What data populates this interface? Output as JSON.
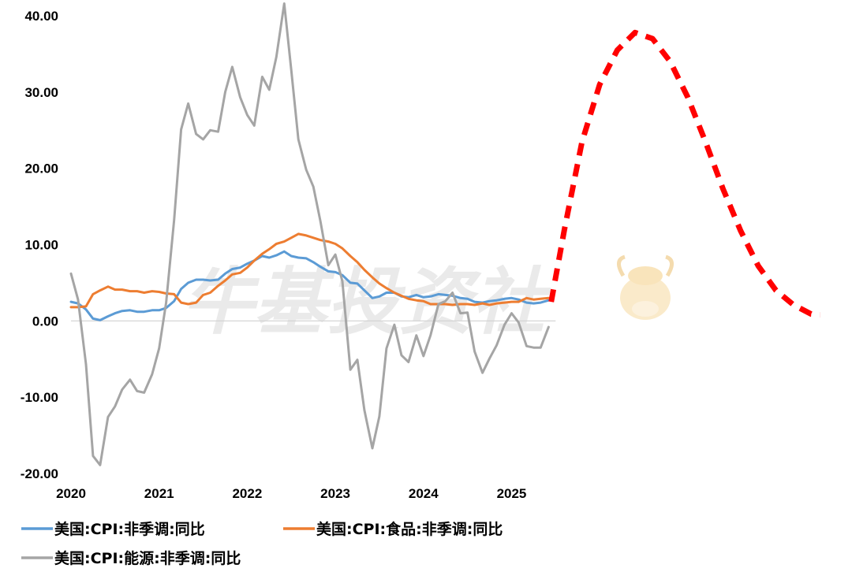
{
  "watermark": {
    "text": "牛基投资社"
  },
  "chart_data": {
    "type": "line",
    "title": "",
    "xlabel": "",
    "ylabel": "",
    "xlim": [
      2020.0,
      2028.55
    ],
    "ylim": [
      -20,
      40
    ],
    "x_ticks": [
      "2020",
      "2021",
      "2022",
      "2023",
      "2024",
      "2025"
    ],
    "y_ticks": [
      "40.00",
      "30.00",
      "20.00",
      "10.00",
      "0.00",
      "-10.00",
      "-20.00"
    ],
    "legend_position": "bottom",
    "series": [
      {
        "name": "美国:CPI:非季调:同比",
        "color": "#5b9bd5",
        "x": [
          2020.0,
          2020.08,
          2020.17,
          2020.25,
          2020.33,
          2020.42,
          2020.5,
          2020.58,
          2020.67,
          2020.75,
          2020.83,
          2020.92,
          2021.0,
          2021.08,
          2021.17,
          2021.25,
          2021.33,
          2021.42,
          2021.5,
          2021.58,
          2021.67,
          2021.75,
          2021.83,
          2021.92,
          2022.0,
          2022.08,
          2022.17,
          2022.25,
          2022.33,
          2022.42,
          2022.5,
          2022.58,
          2022.67,
          2022.75,
          2022.83,
          2022.92,
          2023.0,
          2023.08,
          2023.17,
          2023.25,
          2023.33,
          2023.42,
          2023.5,
          2023.58,
          2023.67,
          2023.75,
          2023.83,
          2023.92,
          2024.0,
          2024.08,
          2024.17,
          2024.25,
          2024.33,
          2024.42,
          2024.5,
          2024.58,
          2024.67,
          2024.75,
          2024.83,
          2024.92,
          2025.0,
          2025.08,
          2025.17,
          2025.25,
          2025.33,
          2025.42
        ],
        "values": [
          2.5,
          2.3,
          1.5,
          0.3,
          0.1,
          0.6,
          1.0,
          1.3,
          1.4,
          1.2,
          1.2,
          1.4,
          1.4,
          1.7,
          2.6,
          4.2,
          5.0,
          5.4,
          5.4,
          5.3,
          5.4,
          6.2,
          6.8,
          7.0,
          7.5,
          7.9,
          8.5,
          8.3,
          8.6,
          9.1,
          8.5,
          8.3,
          8.2,
          7.7,
          7.1,
          6.5,
          6.4,
          6.0,
          5.0,
          4.9,
          4.0,
          3.0,
          3.2,
          3.7,
          3.7,
          3.2,
          3.1,
          3.4,
          3.1,
          3.2,
          3.5,
          3.4,
          3.3,
          3.0,
          2.9,
          2.5,
          2.4,
          2.6,
          2.7,
          2.9,
          3.0,
          2.8,
          2.4,
          2.3,
          2.4,
          2.7
        ]
      },
      {
        "name": "美国:CPI:食品:非季调:同比",
        "color": "#ed7d31",
        "x": [
          2020.0,
          2020.08,
          2020.17,
          2020.25,
          2020.33,
          2020.42,
          2020.5,
          2020.58,
          2020.67,
          2020.75,
          2020.83,
          2020.92,
          2021.0,
          2021.08,
          2021.17,
          2021.25,
          2021.33,
          2021.42,
          2021.5,
          2021.58,
          2021.67,
          2021.75,
          2021.83,
          2021.92,
          2022.0,
          2022.08,
          2022.17,
          2022.25,
          2022.33,
          2022.42,
          2022.5,
          2022.58,
          2022.67,
          2022.75,
          2022.83,
          2022.92,
          2023.0,
          2023.08,
          2023.17,
          2023.25,
          2023.33,
          2023.42,
          2023.5,
          2023.58,
          2023.67,
          2023.75,
          2023.83,
          2023.92,
          2024.0,
          2024.08,
          2024.17,
          2024.25,
          2024.33,
          2024.42,
          2024.5,
          2024.58,
          2024.67,
          2024.75,
          2024.83,
          2024.92,
          2025.0,
          2025.08,
          2025.17,
          2025.25,
          2025.33,
          2025.42
        ],
        "values": [
          1.8,
          1.8,
          1.9,
          3.5,
          4.0,
          4.5,
          4.1,
          4.1,
          3.9,
          3.9,
          3.7,
          3.9,
          3.8,
          3.6,
          3.5,
          2.4,
          2.2,
          2.4,
          3.4,
          3.7,
          4.6,
          5.3,
          6.1,
          6.3,
          7.0,
          7.9,
          8.8,
          9.4,
          10.1,
          10.4,
          10.9,
          11.4,
          11.2,
          10.9,
          10.6,
          10.4,
          10.1,
          9.5,
          8.5,
          7.7,
          6.7,
          5.7,
          4.9,
          4.3,
          3.7,
          3.3,
          2.9,
          2.7,
          2.6,
          2.2,
          2.2,
          2.2,
          2.1,
          2.2,
          2.2,
          2.1,
          2.3,
          2.1,
          2.3,
          2.4,
          2.5,
          2.5,
          3.0,
          2.8,
          2.9,
          3.0
        ]
      },
      {
        "name": "美国:CPI:能源:非季调:同比",
        "color": "#a5a5a5",
        "x": [
          2020.0,
          2020.08,
          2020.17,
          2020.25,
          2020.33,
          2020.42,
          2020.5,
          2020.58,
          2020.67,
          2020.75,
          2020.83,
          2020.92,
          2021.0,
          2021.08,
          2021.17,
          2021.25,
          2021.33,
          2021.42,
          2021.5,
          2021.58,
          2021.67,
          2021.75,
          2021.83,
          2021.92,
          2022.0,
          2022.08,
          2022.17,
          2022.25,
          2022.33,
          2022.42,
          2022.5,
          2022.58,
          2022.67,
          2022.75,
          2022.83,
          2022.92,
          2023.0,
          2023.08,
          2023.17,
          2023.25,
          2023.33,
          2023.42,
          2023.5,
          2023.58,
          2023.67,
          2023.75,
          2023.83,
          2023.92,
          2024.0,
          2024.08,
          2024.17,
          2024.25,
          2024.33,
          2024.42,
          2024.5,
          2024.58,
          2024.67,
          2024.75,
          2024.83,
          2024.92,
          2025.0,
          2025.08,
          2025.17,
          2025.25,
          2025.33,
          2025.42
        ],
        "values": [
          6.2,
          2.8,
          -5.7,
          -17.7,
          -18.9,
          -12.6,
          -11.2,
          -9.0,
          -7.7,
          -9.2,
          -9.4,
          -7.0,
          -3.6,
          2.4,
          13.2,
          25.1,
          28.5,
          24.5,
          23.8,
          25.0,
          24.8,
          30.0,
          33.3,
          29.3,
          27.0,
          25.6,
          32.0,
          30.3,
          34.6,
          41.6,
          32.9,
          23.8,
          19.8,
          17.6,
          13.1,
          7.3,
          8.7,
          5.2,
          -6.4,
          -5.1,
          -11.7,
          -16.7,
          -12.5,
          -3.6,
          -0.5,
          -4.5,
          -5.4,
          -1.9,
          -4.6,
          -1.9,
          2.2,
          2.6,
          3.7,
          1.0,
          1.1,
          -4.0,
          -6.8,
          -4.9,
          -3.2,
          -0.5,
          1.0,
          -0.2,
          -3.3,
          -3.5,
          -3.5,
          -0.8
        ]
      },
      {
        "name": "",
        "color": "#ff0000",
        "dashed": true,
        "x": [
          2025.45,
          2025.6,
          2025.8,
          2026.0,
          2026.2,
          2026.4,
          2026.6,
          2026.8,
          2027.0,
          2027.2,
          2027.4,
          2027.6,
          2027.8,
          2028.0,
          2028.2,
          2028.4,
          2028.5
        ],
        "values": [
          2.5,
          12.0,
          23.5,
          31.0,
          35.5,
          37.8,
          37.0,
          34.0,
          29.3,
          23.5,
          17.3,
          11.8,
          7.2,
          4.0,
          2.1,
          0.9,
          0.8
        ]
      }
    ]
  }
}
